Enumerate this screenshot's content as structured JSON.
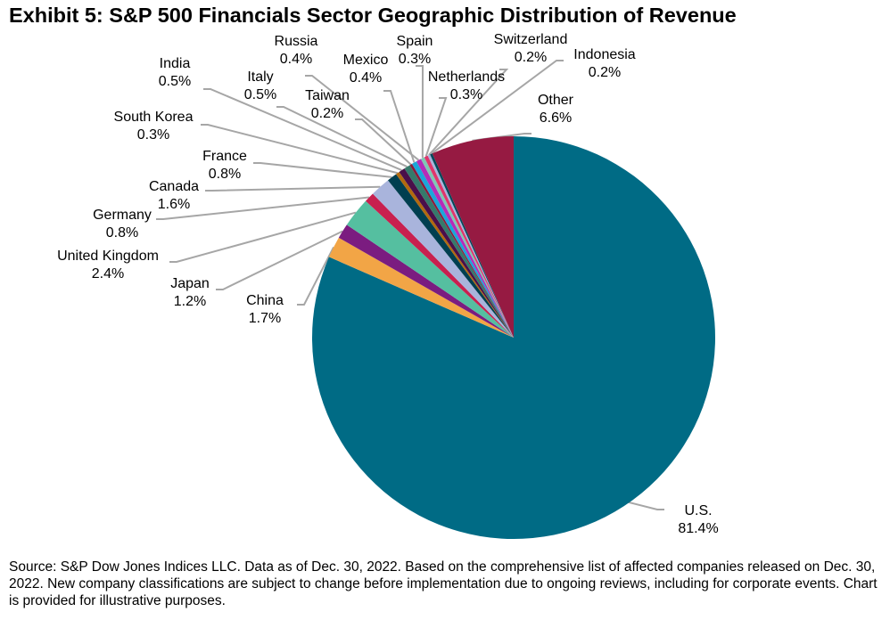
{
  "chart_data": {
    "type": "pie",
    "title": "Exhibit 5: S&P 500 Financials Sector Geographic Distribution of Revenue",
    "unit": "%",
    "start": "12 o'clock, clockwise",
    "slices": [
      {
        "label": "U.S.",
        "value": 81.4,
        "color": "#006b85"
      },
      {
        "label": "China",
        "value": 1.7,
        "color": "#f2a546"
      },
      {
        "label": "Japan",
        "value": 1.2,
        "color": "#7b1c80"
      },
      {
        "label": "United Kingdom",
        "value": 2.4,
        "color": "#55bfa0"
      },
      {
        "label": "Germany",
        "value": 0.8,
        "color": "#c8204f"
      },
      {
        "label": "Canada",
        "value": 1.6,
        "color": "#a9b4dc"
      },
      {
        "label": "France",
        "value": 0.8,
        "color": "#003f50"
      },
      {
        "label": "South Korea",
        "value": 0.3,
        "color": "#b26a0e"
      },
      {
        "label": "India",
        "value": 0.5,
        "color": "#4a0f4a"
      },
      {
        "label": "Italy",
        "value": 0.5,
        "color": "#357a6b"
      },
      {
        "label": "Taiwan",
        "value": 0.2,
        "color": "#8b1a3a"
      },
      {
        "label": "Mexico",
        "value": 0.4,
        "color": "#1aa7d9"
      },
      {
        "label": "Russia",
        "value": 0.4,
        "color": "#b62cb8"
      },
      {
        "label": "Spain",
        "value": 0.3,
        "color": "#7fc8b4"
      },
      {
        "label": "Netherlands",
        "value": 0.3,
        "color": "#e0356c"
      },
      {
        "label": "Switzerland",
        "value": 0.2,
        "color": "#a9b4dc"
      },
      {
        "label": "Indonesia",
        "value": 0.2,
        "color": "#00495a"
      },
      {
        "label": "Other",
        "value": 6.6,
        "color": "#961a42"
      }
    ]
  },
  "source": "Source: S&P Dow Jones Indices LLC. Data as of Dec. 30, 2022. Based on the comprehensive list of affected companies released on Dec. 30, 2022. New company classifications are subject to change before implementation due to ongoing reviews, including for corporate events. Chart is provided for illustrative purposes."
}
